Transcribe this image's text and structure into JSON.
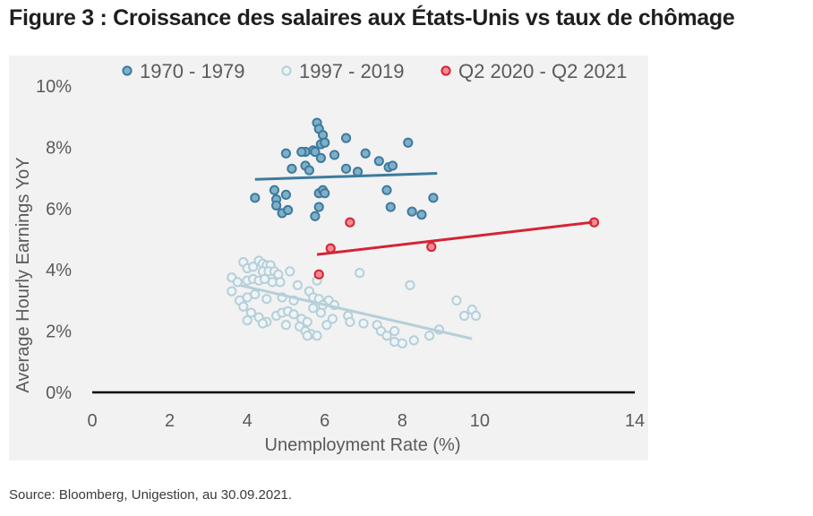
{
  "title": "Figure 3 : Croissance des salaires aux États-Unis vs taux de chômage",
  "source": "Source: Bloomberg, Unigestion, au 30.09.2021.",
  "chart_data": {
    "type": "scatter",
    "xlabel": "Unemployment Rate (%)",
    "ylabel": "Average Hourly Earnings YoY",
    "xlim": [
      0,
      14
    ],
    "ylim": [
      0,
      10
    ],
    "xticks": [
      "0",
      "2",
      "4",
      "6",
      "8",
      "10",
      "14"
    ],
    "xtick_values": [
      0,
      2,
      4,
      6,
      8,
      10,
      14
    ],
    "yticks": [
      "0%",
      "2%",
      "4%",
      "6%",
      "8%",
      "10%"
    ],
    "ytick_values": [
      0,
      2,
      4,
      6,
      8,
      10
    ],
    "grid": false,
    "legend_position": "top",
    "zero_line_color": "#000000",
    "series": [
      {
        "name": "1970 - 1979",
        "color": "#3e7a9e",
        "fill": "#7fb0c8",
        "points": [
          [
            5.8,
            8.8
          ],
          [
            5.85,
            8.6
          ],
          [
            5.95,
            8.4
          ],
          [
            5.9,
            8.1
          ],
          [
            6.0,
            8.15
          ],
          [
            5.7,
            7.9
          ],
          [
            5.75,
            7.85
          ],
          [
            5.5,
            7.85
          ],
          [
            5.4,
            7.85
          ],
          [
            5.0,
            7.8
          ],
          [
            5.9,
            7.65
          ],
          [
            6.25,
            7.75
          ],
          [
            6.55,
            8.3
          ],
          [
            7.05,
            7.8
          ],
          [
            8.15,
            8.15
          ],
          [
            5.15,
            7.3
          ],
          [
            5.5,
            7.4
          ],
          [
            5.6,
            7.25
          ],
          [
            6.55,
            7.3
          ],
          [
            6.85,
            7.2
          ],
          [
            7.4,
            7.55
          ],
          [
            7.65,
            7.35
          ],
          [
            7.75,
            7.4
          ],
          [
            4.2,
            6.35
          ],
          [
            4.7,
            6.6
          ],
          [
            4.75,
            6.3
          ],
          [
            5.0,
            6.45
          ],
          [
            5.85,
            6.5
          ],
          [
            5.95,
            6.6
          ],
          [
            6.0,
            6.5
          ],
          [
            7.6,
            6.6
          ],
          [
            8.8,
            6.35
          ],
          [
            4.75,
            6.1
          ],
          [
            4.9,
            5.85
          ],
          [
            5.05,
            5.95
          ],
          [
            5.85,
            6.05
          ],
          [
            5.75,
            5.75
          ],
          [
            7.7,
            6.05
          ],
          [
            8.25,
            5.9
          ],
          [
            8.5,
            5.8
          ]
        ],
        "trend": [
          [
            4.2,
            6.95
          ],
          [
            8.9,
            7.15
          ]
        ]
      },
      {
        "name": "1997 - 2019",
        "color": "#b6cfd9",
        "fill": "#eef4f7",
        "points": [
          [
            3.9,
            4.25
          ],
          [
            4.0,
            4.05
          ],
          [
            4.15,
            4.1
          ],
          [
            4.3,
            4.3
          ],
          [
            4.4,
            4.2
          ],
          [
            4.5,
            4.15
          ],
          [
            4.6,
            4.15
          ],
          [
            4.4,
            3.95
          ],
          [
            4.55,
            3.95
          ],
          [
            4.7,
            3.95
          ],
          [
            4.8,
            3.85
          ],
          [
            5.1,
            3.95
          ],
          [
            6.9,
            3.9
          ],
          [
            8.2,
            3.5
          ],
          [
            3.6,
            3.75
          ],
          [
            3.75,
            3.6
          ],
          [
            4.0,
            3.65
          ],
          [
            4.15,
            3.7
          ],
          [
            4.3,
            3.65
          ],
          [
            4.45,
            3.7
          ],
          [
            4.65,
            3.6
          ],
          [
            4.85,
            3.6
          ],
          [
            5.3,
            3.5
          ],
          [
            5.6,
            3.3
          ],
          [
            5.8,
            3.65
          ],
          [
            3.6,
            3.3
          ],
          [
            3.8,
            3.0
          ],
          [
            4.0,
            3.1
          ],
          [
            4.2,
            3.2
          ],
          [
            4.5,
            3.05
          ],
          [
            4.9,
            3.1
          ],
          [
            5.2,
            3.0
          ],
          [
            5.7,
            3.1
          ],
          [
            5.85,
            3.05
          ],
          [
            6.1,
            3.0
          ],
          [
            3.9,
            2.8
          ],
          [
            4.1,
            2.6
          ],
          [
            4.3,
            2.45
          ],
          [
            4.5,
            2.3
          ],
          [
            4.75,
            2.5
          ],
          [
            4.9,
            2.6
          ],
          [
            5.05,
            2.65
          ],
          [
            5.2,
            2.55
          ],
          [
            5.4,
            2.4
          ],
          [
            5.55,
            2.3
          ],
          [
            5.7,
            2.75
          ],
          [
            5.9,
            2.6
          ],
          [
            6.2,
            2.4
          ],
          [
            6.6,
            2.5
          ],
          [
            4.0,
            2.35
          ],
          [
            4.4,
            2.25
          ],
          [
            5.0,
            2.2
          ],
          [
            5.35,
            2.15
          ],
          [
            5.5,
            2.0
          ],
          [
            5.65,
            1.9
          ],
          [
            5.8,
            1.85
          ],
          [
            5.55,
            1.85
          ],
          [
            6.05,
            2.2
          ],
          [
            6.65,
            2.3
          ],
          [
            7.0,
            2.25
          ],
          [
            7.35,
            2.2
          ],
          [
            7.45,
            2.0
          ],
          [
            7.6,
            1.85
          ],
          [
            7.8,
            1.65
          ],
          [
            8.0,
            1.6
          ],
          [
            8.3,
            1.7
          ],
          [
            8.7,
            1.85
          ],
          [
            8.95,
            2.05
          ],
          [
            9.4,
            3.0
          ],
          [
            9.6,
            2.5
          ],
          [
            9.8,
            2.7
          ],
          [
            9.9,
            2.5
          ],
          [
            7.8,
            2.0
          ],
          [
            6.25,
            2.85
          ],
          [
            5.95,
            2.85
          ]
        ],
        "trend": [
          [
            3.8,
            3.5
          ],
          [
            9.8,
            1.75
          ]
        ]
      },
      {
        "name": "Q2 2020 - Q2 2021",
        "color": "#d42433",
        "fill": "#f48a94",
        "points": [
          [
            5.85,
            3.85
          ],
          [
            6.15,
            4.7
          ],
          [
            6.65,
            5.55
          ],
          [
            8.75,
            4.75
          ],
          [
            12.95,
            5.55
          ]
        ],
        "trend": [
          [
            5.8,
            4.5
          ],
          [
            12.9,
            5.55
          ]
        ]
      }
    ]
  }
}
